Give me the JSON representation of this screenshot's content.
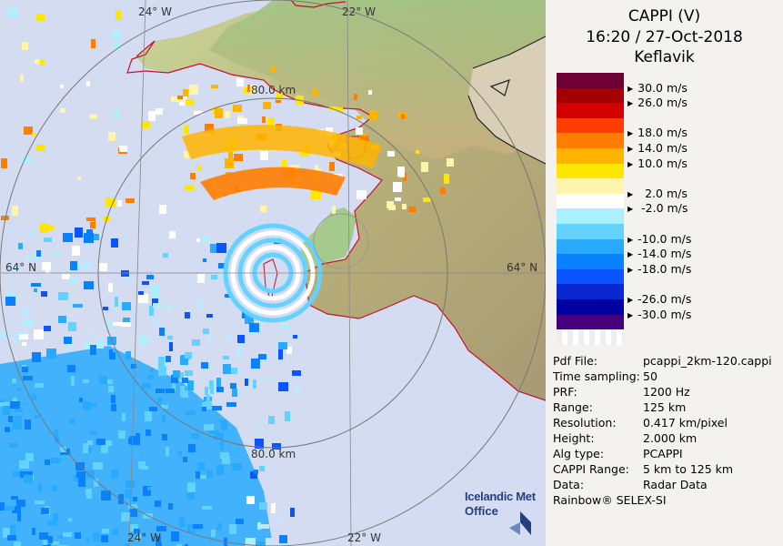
{
  "map": {
    "labels": {
      "lon_top_left": "24° W",
      "lon_top_right": "22° W",
      "lon_bottom_left": "24° W",
      "lon_bottom_right": "22° W",
      "lat_left": "64° N",
      "lat_right": "64° N",
      "range_80_top": "80.0 km",
      "range_80_bottom": "80.0 km"
    },
    "logo": {
      "line1": "Icelandic Met",
      "line2": "Office"
    }
  },
  "header": {
    "product": "CAPPI (V)",
    "datetime": "16:20 / 27-Oct-2018",
    "site": "Keflavik"
  },
  "legend": {
    "colors": [
      "#6e0033",
      "#a50000",
      "#d20000",
      "#ff3c00",
      "#ff7d00",
      "#ffb400",
      "#ffe600",
      "#fff5aa",
      "#ffffff",
      "#aaf0ff",
      "#64d2ff",
      "#28aaff",
      "#0a82ff",
      "#0a55ff",
      "#0a28d2",
      "#0000a0",
      "#46007d",
      "#ffffff"
    ],
    "labels": [
      {
        "text": "30.0 m/s",
        "row": 1
      },
      {
        "text": "26.0 m/s",
        "row": 2
      },
      {
        "text": "18.0 m/s",
        "row": 4
      },
      {
        "text": "14.0 m/s",
        "row": 5
      },
      {
        "text": "10.0 m/s",
        "row": 6
      },
      {
        "text": "  2.0 m/s",
        "row": 8
      },
      {
        "text": " -2.0 m/s",
        "row": 9
      },
      {
        "text": "-10.0 m/s",
        "row": 11
      },
      {
        "text": "-14.0 m/s",
        "row": 12
      },
      {
        "text": "-18.0 m/s",
        "row": 13
      },
      {
        "text": "-26.0 m/s",
        "row": 15
      },
      {
        "text": "-30.0 m/s",
        "row": 16
      }
    ]
  },
  "info": [
    {
      "key": "Pdf File:",
      "value": "pcappi_2km-120.cappi"
    },
    {
      "key": "Time sampling:",
      "value": "50"
    },
    {
      "key": "PRF:",
      "value": "1200 Hz"
    },
    {
      "key": "Range:",
      "value": "125 km"
    },
    {
      "key": "Resolution:",
      "value": "0.417 km/pixel"
    },
    {
      "key": "Height:",
      "value": "2.000 km"
    },
    {
      "key": "Alg type:",
      "value": "PCAPPI"
    },
    {
      "key": "CAPPI Range:",
      "value": "5 km to 125 km"
    },
    {
      "key": "Data:",
      "value": "Radar Data"
    }
  ],
  "footer": {
    "software": "Rainbow® SELEX-SI"
  }
}
